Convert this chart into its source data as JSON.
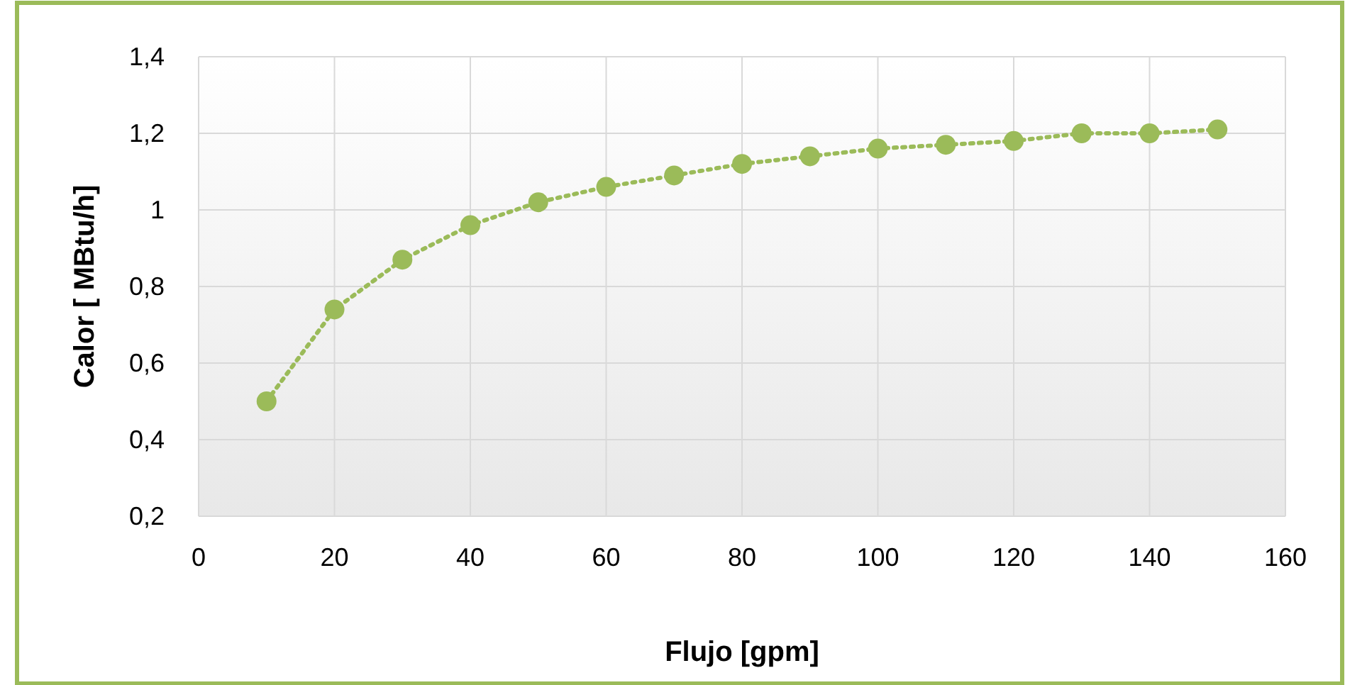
{
  "chart_data": {
    "type": "line",
    "xlabel": "Flujo [gpm]",
    "ylabel": "Calor [ MBtu/h]",
    "x": [
      10,
      20,
      30,
      40,
      50,
      60,
      70,
      80,
      90,
      100,
      110,
      120,
      130,
      140,
      150
    ],
    "series": [
      {
        "color": "#9bbb59",
        "values": [
          0.5,
          0.74,
          0.87,
          0.96,
          1.02,
          1.06,
          1.09,
          1.12,
          1.14,
          1.16,
          1.17,
          1.18,
          1.2,
          1.2,
          1.21
        ]
      }
    ],
    "xlim": [
      0,
      160
    ],
    "xticks": [
      {
        "value": 0,
        "label": "0"
      },
      {
        "value": 20,
        "label": "20"
      },
      {
        "value": 40,
        "label": "40"
      },
      {
        "value": 60,
        "label": "60"
      },
      {
        "value": 80,
        "label": "80"
      },
      {
        "value": 100,
        "label": "100"
      },
      {
        "value": 120,
        "label": "120"
      },
      {
        "value": 140,
        "label": "140"
      },
      {
        "value": 160,
        "label": "160"
      }
    ],
    "ylim": [
      0.2,
      1.4
    ],
    "yticks": [
      {
        "value": 0.2,
        "label": "0,2"
      },
      {
        "value": 0.4,
        "label": "0,4"
      },
      {
        "value": 0.6,
        "label": "0,6"
      },
      {
        "value": 0.8,
        "label": "0,8"
      },
      {
        "value": 1,
        "label": "1"
      },
      {
        "value": 1.2,
        "label": "1,2"
      },
      {
        "value": 1.4,
        "label": "1,4"
      }
    ],
    "grid": true,
    "marker": "circle",
    "line_style": "dotted"
  }
}
